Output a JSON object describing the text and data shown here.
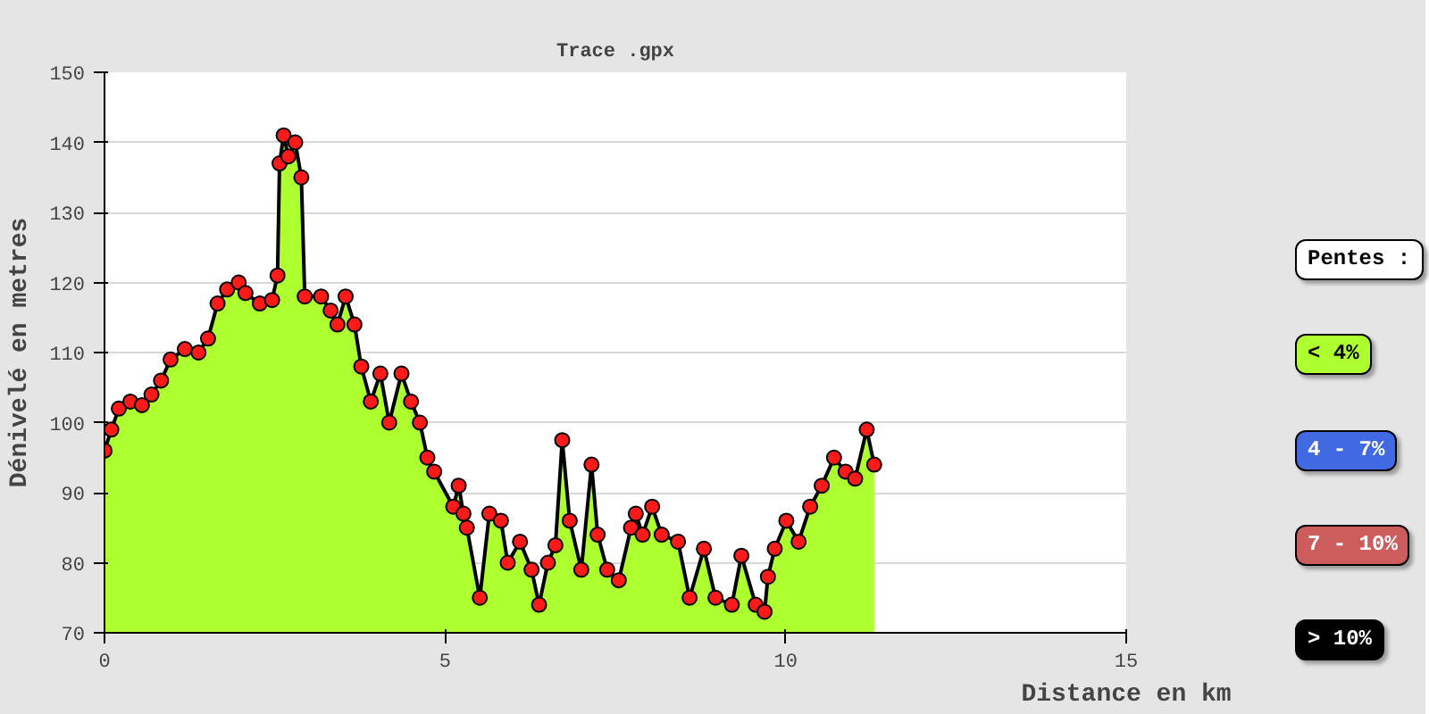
{
  "chart_data": {
    "type": "area",
    "title": "Trace .gpx",
    "xlabel": "Distance en km",
    "ylabel": "Dénivelé en metres",
    "xlim": [
      0,
      15
    ],
    "xticks": [
      0,
      5,
      10,
      15
    ],
    "ylim": [
      70,
      150
    ],
    "yticks": [
      70,
      80,
      90,
      100,
      110,
      120,
      130,
      140,
      150
    ],
    "grid": "y",
    "marker": "circle",
    "annotations": [
      "Pentes :",
      "< 4%",
      "4 - 7%",
      "7 - 10%",
      "> 10%"
    ],
    "series": [
      {
        "color": "#adff2f",
        "x": [
          0,
          0.1,
          0.21,
          0.38,
          0.55,
          0.69,
          0.83,
          0.97,
          1.18,
          1.38,
          1.52,
          1.66,
          1.8,
          1.97,
          2.07,
          2.28,
          2.46,
          2.54,
          2.57,
          2.63,
          2.7,
          2.8,
          2.89,
          2.94,
          3.18,
          3.32,
          3.42,
          3.54,
          3.67,
          3.77,
          3.91,
          4.05,
          4.18,
          4.36,
          4.5,
          4.63,
          4.74,
          4.84,
          5.12,
          5.2,
          5.27,
          5.32,
          5.51,
          5.65,
          5.82,
          5.92,
          6.1,
          6.27,
          6.38,
          6.51,
          6.62,
          6.72,
          6.83,
          7.0,
          7.15,
          7.24,
          7.38,
          7.55,
          7.73,
          7.8,
          7.9,
          8.04,
          8.18,
          8.42,
          8.59,
          8.8,
          8.97,
          9.21,
          9.35,
          9.56,
          9.69,
          9.74,
          9.84,
          10.01,
          10.19,
          10.36,
          10.53,
          10.71,
          10.88,
          11.02,
          11.19,
          11.3
        ],
        "values": [
          96,
          99,
          102,
          103,
          102.5,
          104,
          106,
          109,
          110.5,
          110,
          112,
          117,
          119,
          120,
          118.5,
          117,
          117.5,
          121,
          137,
          141,
          138,
          140,
          135,
          118,
          118,
          116,
          114,
          118,
          114,
          108,
          103,
          107,
          100,
          107,
          103,
          100,
          95,
          93,
          88,
          91,
          87,
          85,
          75,
          87,
          86,
          80,
          83,
          79,
          74,
          80,
          82.5,
          97.5,
          86,
          79,
          94,
          84,
          79,
          77.5,
          85,
          87,
          84,
          88,
          84,
          83,
          75,
          82,
          75,
          74,
          81,
          74,
          73,
          78,
          82,
          86,
          83,
          88,
          91,
          95,
          93,
          92,
          99,
          94
        ]
      }
    ]
  }
}
